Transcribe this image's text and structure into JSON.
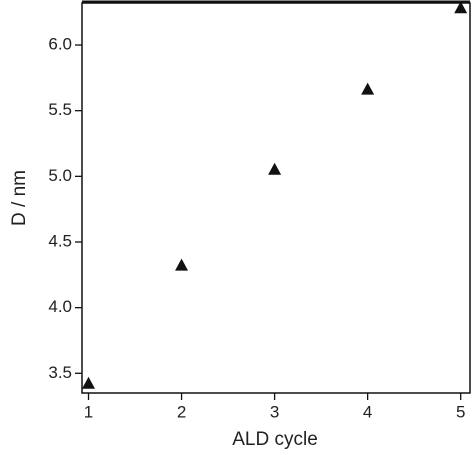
{
  "chart_data": {
    "type": "scatter",
    "x_label": "ALD cycle",
    "y_label": "D / nm",
    "x": [
      1,
      2,
      3,
      4,
      5
    ],
    "values": [
      3.42,
      4.32,
      5.05,
      5.66,
      6.28
    ],
    "color": "#111111",
    "xlim": [
      0.93,
      5.1
    ],
    "ylim": [
      3.35,
      6.32
    ],
    "xticks": [
      1,
      2,
      3,
      4,
      5
    ],
    "yticks": [
      {
        "value": 3.5,
        "label": "3.5"
      },
      {
        "value": 4,
        "label": "4.0"
      },
      {
        "value": 4.5,
        "label": "4.5"
      },
      {
        "value": 5,
        "label": "5.0"
      },
      {
        "value": 5.5,
        "label": "5.5"
      },
      {
        "value": 6,
        "label": "6.0"
      }
    ]
  }
}
